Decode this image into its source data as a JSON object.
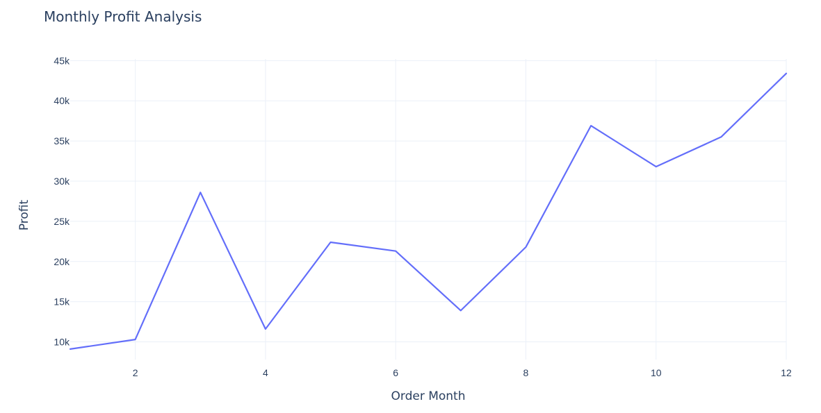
{
  "chart_data": {
    "type": "line",
    "title": "Monthly Profit Analysis",
    "xlabel": "Order Month",
    "ylabel": "Profit",
    "x": [
      1,
      2,
      3,
      4,
      5,
      6,
      7,
      8,
      9,
      10,
      11,
      12
    ],
    "xlim": [
      1,
      12
    ],
    "ylim": [
      7800,
      45200
    ],
    "x_ticks": [
      2,
      4,
      6,
      8,
      10,
      12
    ],
    "x_tick_labels": [
      "2",
      "4",
      "6",
      "8",
      "10",
      "12"
    ],
    "y_ticks": [
      10000,
      15000,
      20000,
      25000,
      30000,
      35000,
      40000,
      45000
    ],
    "y_tick_labels": [
      "10k",
      "15k",
      "20k",
      "25k",
      "30k",
      "35k",
      "40k",
      "45k"
    ],
    "grid": true,
    "series": [
      {
        "values": [
          9100,
          10300,
          28600,
          11600,
          22400,
          21300,
          13900,
          21800,
          36900,
          31800,
          35500,
          43400
        ],
        "color": "#636efa"
      }
    ]
  }
}
